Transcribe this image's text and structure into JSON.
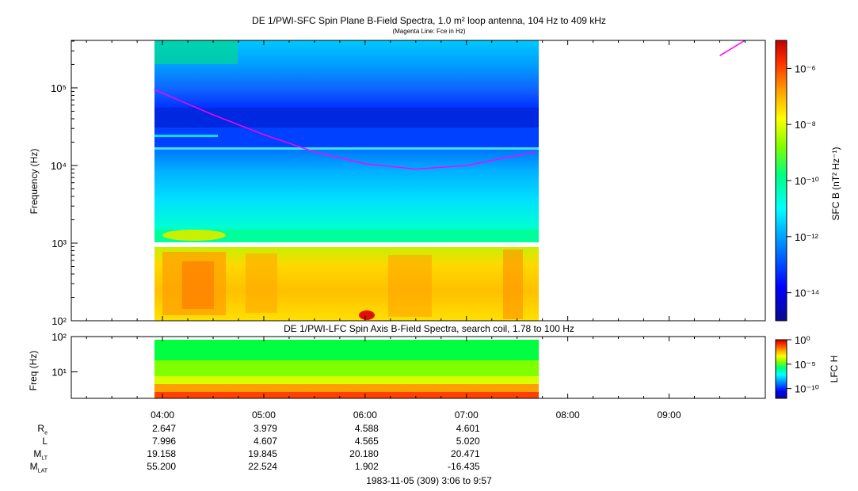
{
  "titles": {
    "main": "DE 1/PWI-SFC  Spin Plane B-Field Spectra, 1.0 m² loop antenna, 104 Hz to 409 kHz",
    "main_sub": "(Magenta Line: Fce in Hz)",
    "lower": "DE 1/PWI-LFC  Spin Axis B-Field Spectra, search coil, 1.78 to 100 Hz"
  },
  "axes": {
    "main_ylabel": "Frequency (Hz)",
    "lower_ylabel": "Freq (Hz)",
    "main_cbar_label": "SFC B (nT² Hz⁻¹)",
    "lower_cbar_label": "LFC H",
    "main_yticks": [
      "10²",
      "10³",
      "10⁴",
      "10⁵"
    ],
    "lower_yticks": [
      "10¹",
      "10²"
    ],
    "main_cbar_ticks": [
      "10⁻⁶",
      "10⁻⁸",
      "10⁻¹⁰",
      "10⁻¹²",
      "10⁻¹⁴"
    ],
    "lower_cbar_ticks": [
      "10⁰",
      "10⁻⁵",
      "10⁻¹⁰"
    ],
    "time_ticks": [
      "04:00",
      "05:00",
      "06:00",
      "07:00",
      "08:00",
      "09:00"
    ]
  },
  "ephemeris": {
    "labels": [
      "Re",
      "L",
      "MLT",
      "MLAT"
    ],
    "rows": [
      [
        "2.647",
        "3.979",
        "4.588",
        "4.601"
      ],
      [
        "7.996",
        "4.607",
        "4.565",
        "5.020"
      ],
      [
        "19.158",
        "19.845",
        "20.180",
        "20.471"
      ],
      [
        "55.200",
        "22.524",
        "1.902",
        "-16.435"
      ]
    ]
  },
  "footer": "1983-11-05 (309) 3:06 to 9:57",
  "colors": {
    "fce_line": "#ff00ff",
    "colormap": [
      "#0a0a8c",
      "#0000ff",
      "#0090ff",
      "#00ffff",
      "#00ff7f",
      "#7fff00",
      "#ffff00",
      "#ffa000",
      "#ff3000",
      "#b00000"
    ]
  },
  "chart_data": [
    {
      "type": "heatmap",
      "title": "DE 1/PWI-SFC  Spin Plane B-Field Spectra, 1.0 m² loop antenna, 104 Hz to 409 kHz",
      "xlabel": "",
      "ylabel": "Frequency (Hz)",
      "x_range": [
        "03:06",
        "09:57"
      ],
      "data_coverage": [
        "03:55",
        "07:41"
      ],
      "ylim": [
        100,
        409000
      ],
      "yscale": "log",
      "colorbar": {
        "label": "SFC B (nT² Hz⁻¹)",
        "range": [
          1e-15,
          1e-05
        ],
        "scale": "log"
      },
      "fce_line_hz": [
        {
          "t": "03:55",
          "f": 95000
        },
        {
          "t": "04:30",
          "f": 45000
        },
        {
          "t": "05:00",
          "f": 25000
        },
        {
          "t": "05:30",
          "f": 15000
        },
        {
          "t": "06:00",
          "f": 10500
        },
        {
          "t": "06:30",
          "f": 9000
        },
        {
          "t": "07:00",
          "f": 10000
        },
        {
          "t": "07:41",
          "f": 15000
        },
        {
          "t": "09:30",
          "f": 260000
        },
        {
          "t": "09:45",
          "f": 409000
        }
      ]
    },
    {
      "type": "heatmap",
      "title": "DE 1/PWI-LFC  Spin Axis B-Field Spectra, search coil, 1.78 to 100 Hz",
      "ylabel": "Freq (Hz)",
      "x_range": [
        "03:06",
        "09:57"
      ],
      "data_coverage": [
        "03:55",
        "07:41"
      ],
      "ylim": [
        1.78,
        100
      ],
      "yscale": "log",
      "colorbar": {
        "label": "LFC H",
        "range": [
          1e-12,
          1.0
        ],
        "scale": "log"
      }
    }
  ]
}
